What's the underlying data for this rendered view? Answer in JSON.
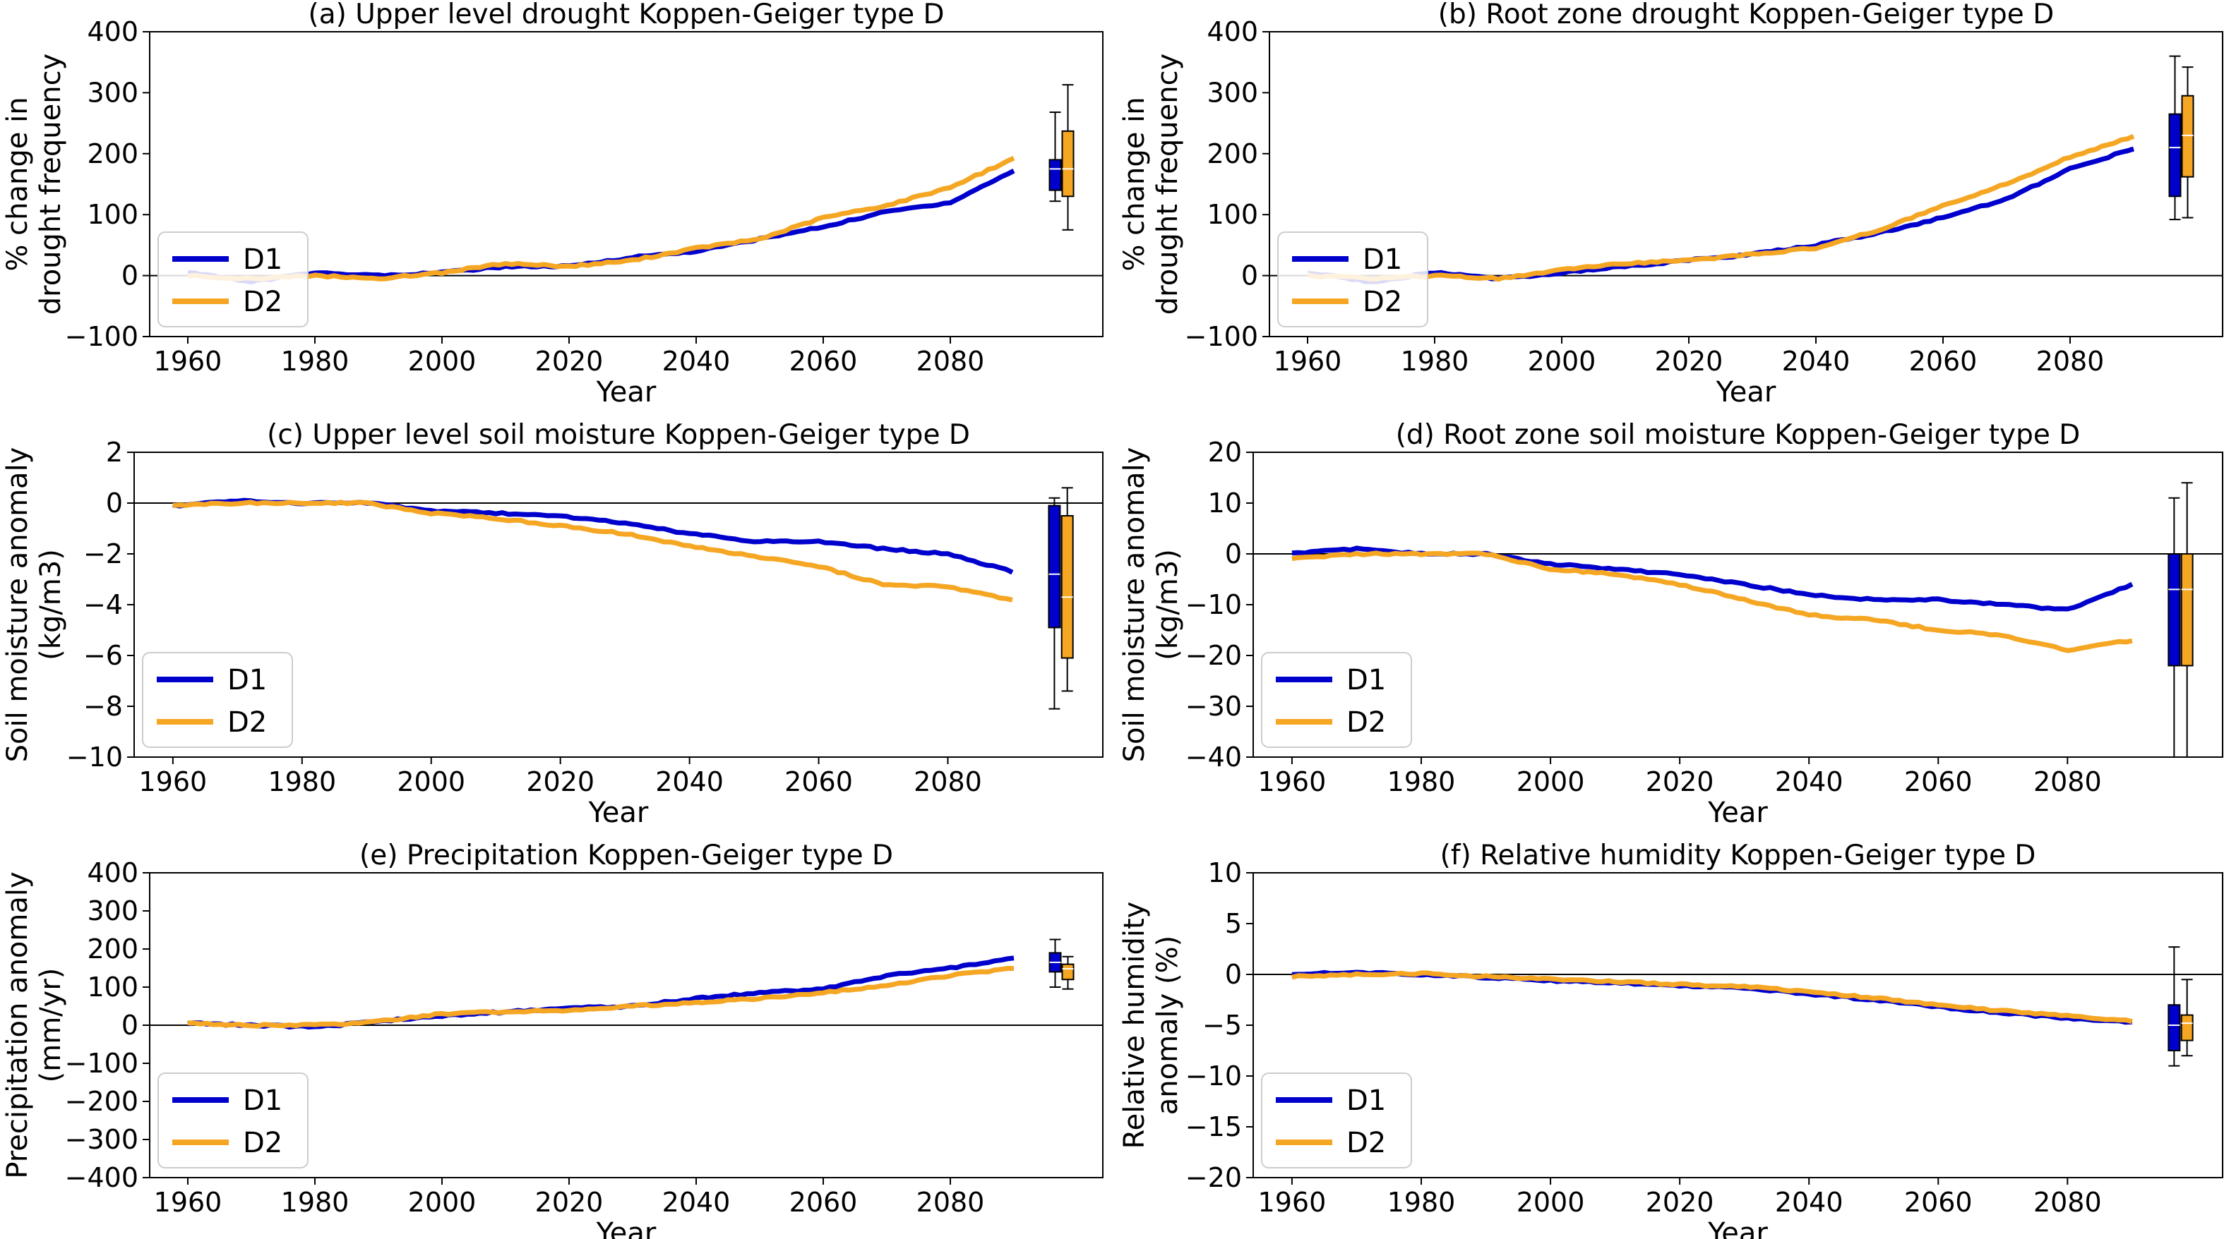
{
  "colors": {
    "D1": "#0000cd",
    "D2": "#f5a623"
  },
  "chart_data": [
    {
      "type": "line",
      "title": "(a) Upper level drought Koppen-Geiger type D",
      "xlabel": "Year",
      "ylabel": [
        "% change in",
        "drought frequency"
      ],
      "xlim": [
        1954,
        2104
      ],
      "ylim": [
        -100,
        400
      ],
      "xticks": [
        1960,
        1980,
        2000,
        2020,
        2040,
        2060,
        2080
      ],
      "yticks": [
        -100,
        0,
        100,
        200,
        300,
        400
      ],
      "zero_line": true,
      "legend": {
        "position": "lower-left",
        "entries": [
          "D1",
          "D2"
        ]
      },
      "series": [
        {
          "name": "D1",
          "x": [
            1960,
            1970,
            1980,
            1990,
            2000,
            2010,
            2020,
            2030,
            2040,
            2050,
            2060,
            2070,
            2080,
            2090
          ],
          "values": [
            5,
            -10,
            5,
            0,
            5,
            15,
            15,
            30,
            40,
            60,
            80,
            105,
            120,
            172
          ]
        },
        {
          "name": "D2",
          "x": [
            1960,
            1970,
            1980,
            1990,
            2000,
            2010,
            2020,
            2030,
            2040,
            2050,
            2060,
            2070,
            2080,
            2090
          ],
          "values": [
            0,
            -5,
            0,
            -5,
            5,
            20,
            15,
            25,
            45,
            60,
            95,
            115,
            145,
            192
          ]
        }
      ],
      "boxplots": [
        {
          "name": "D1",
          "x": 2096.5,
          "whislo": 122,
          "q1": 140,
          "median": 175,
          "q3": 190,
          "whishi": 268
        },
        {
          "name": "D2",
          "x": 2098.5,
          "whislo": 75,
          "q1": 130,
          "median": 175,
          "q3": 237,
          "whishi": 313
        }
      ]
    },
    {
      "type": "line",
      "title": "(b) Root zone drought Koppen-Geiger type D",
      "xlabel": "Year",
      "ylabel": [
        "% change in",
        "drought frequency"
      ],
      "xlim": [
        1954,
        2104
      ],
      "ylim": [
        -100,
        400
      ],
      "xticks": [
        1960,
        1980,
        2000,
        2020,
        2040,
        2060,
        2080
      ],
      "yticks": [
        -100,
        0,
        100,
        200,
        300,
        400
      ],
      "zero_line": true,
      "legend": {
        "position": "lower-left",
        "entries": [
          "D1",
          "D2"
        ]
      },
      "series": [
        {
          "name": "D1",
          "x": [
            1960,
            1970,
            1980,
            1990,
            2000,
            2010,
            2020,
            2030,
            2040,
            2050,
            2060,
            2070,
            2080,
            2090
          ],
          "values": [
            5,
            -10,
            5,
            -5,
            5,
            15,
            25,
            35,
            50,
            70,
            95,
            125,
            175,
            208
          ]
        },
        {
          "name": "D2",
          "x": [
            1960,
            1970,
            1980,
            1990,
            2000,
            2010,
            2020,
            2030,
            2040,
            2050,
            2060,
            2070,
            2080,
            2090
          ],
          "values": [
            0,
            -5,
            0,
            -5,
            10,
            20,
            25,
            35,
            45,
            75,
            115,
            150,
            195,
            228
          ]
        }
      ],
      "boxplots": [
        {
          "name": "D1",
          "x": 2096.5,
          "whislo": 92,
          "q1": 130,
          "median": 210,
          "q3": 265,
          "whishi": 360
        },
        {
          "name": "D2",
          "x": 2098.5,
          "whislo": 95,
          "q1": 162,
          "median": 230,
          "q3": 295,
          "whishi": 342
        }
      ]
    },
    {
      "type": "line",
      "title": "(c) Upper level soil moisture Koppen-Geiger type D",
      "xlabel": "Year",
      "ylabel": [
        "Soil moisture anomaly",
        "(kg/m3)"
      ],
      "xlim": [
        1954,
        2104
      ],
      "ylim": [
        -10,
        2
      ],
      "xticks": [
        1960,
        1980,
        2000,
        2020,
        2040,
        2060,
        2080
      ],
      "yticks": [
        -10,
        -8,
        -6,
        -4,
        -2,
        0,
        2
      ],
      "zero_line": true,
      "legend": {
        "position": "lower-left",
        "entries": [
          "D1",
          "D2"
        ]
      },
      "series": [
        {
          "name": "D1",
          "x": [
            1960,
            1970,
            1980,
            1990,
            2000,
            2010,
            2020,
            2030,
            2040,
            2050,
            2060,
            2070,
            2080,
            2090
          ],
          "values": [
            -0.1,
            0.1,
            0.0,
            0.0,
            -0.3,
            -0.4,
            -0.5,
            -0.8,
            -1.2,
            -1.5,
            -1.5,
            -1.8,
            -2.0,
            -2.7
          ]
        },
        {
          "name": "D2",
          "x": [
            1960,
            1970,
            1980,
            1990,
            2000,
            2010,
            2020,
            2030,
            2040,
            2050,
            2060,
            2070,
            2080,
            2090
          ],
          "values": [
            -0.1,
            0.0,
            0.0,
            0.0,
            -0.4,
            -0.6,
            -0.9,
            -1.2,
            -1.7,
            -2.1,
            -2.5,
            -3.2,
            -3.3,
            -3.8
          ]
        }
      ],
      "boxplots": [
        {
          "name": "D1",
          "x": 2096.5,
          "whislo": -8.1,
          "q1": -4.9,
          "median": -2.8,
          "q3": -0.1,
          "whishi": 0.2
        },
        {
          "name": "D2",
          "x": 2098.5,
          "whislo": -7.4,
          "q1": -6.1,
          "median": -3.7,
          "q3": -0.5,
          "whishi": 0.6
        }
      ]
    },
    {
      "type": "line",
      "title": "(d) Root zone soil moisture Koppen-Geiger type D",
      "xlabel": "Year",
      "ylabel": [
        "Soil moisture anomaly",
        "(kg/m3)"
      ],
      "xlim": [
        1954,
        2104
      ],
      "ylim": [
        -40,
        20
      ],
      "xticks": [
        1960,
        1980,
        2000,
        2020,
        2040,
        2060,
        2080
      ],
      "yticks": [
        -40,
        -30,
        -20,
        -10,
        0,
        10,
        20
      ],
      "zero_line": true,
      "legend": {
        "position": "lower-left",
        "entries": [
          "D1",
          "D2"
        ]
      },
      "series": [
        {
          "name": "D1",
          "x": [
            1960,
            1970,
            1980,
            1990,
            2000,
            2010,
            2020,
            2030,
            2040,
            2050,
            2060,
            2070,
            2080,
            2090
          ],
          "values": [
            0,
            1,
            0,
            0,
            -2,
            -3,
            -4,
            -6,
            -8,
            -9,
            -9,
            -10,
            -11,
            -6
          ]
        },
        {
          "name": "D2",
          "x": [
            1960,
            1970,
            1980,
            1990,
            2000,
            2010,
            2020,
            2030,
            2040,
            2050,
            2060,
            2070,
            2080,
            2090
          ],
          "values": [
            -1,
            0,
            0,
            0,
            -3,
            -4,
            -6,
            -9,
            -12,
            -13,
            -15,
            -16,
            -19,
            -17
          ]
        }
      ],
      "boxplots": [
        {
          "name": "D1",
          "x": 2096.5,
          "whislo": -40,
          "q1": -22,
          "median": -7,
          "q3": 0,
          "whishi": 11
        },
        {
          "name": "D2",
          "x": 2098.5,
          "whislo": -40,
          "q1": -22,
          "median": -7,
          "q3": 0,
          "whishi": 14
        }
      ]
    },
    {
      "type": "line",
      "title": "(e) Precipitation Koppen-Geiger type D",
      "xlabel": "Year",
      "ylabel": [
        "Precipitation anomaly",
        "(mm/yr)"
      ],
      "xlim": [
        1954,
        2104
      ],
      "ylim": [
        -400,
        400
      ],
      "xticks": [
        1960,
        1980,
        2000,
        2020,
        2040,
        2060,
        2080
      ],
      "yticks": [
        -400,
        -300,
        -200,
        -100,
        0,
        100,
        200,
        300,
        400
      ],
      "zero_line": true,
      "legend": {
        "position": "lower-left",
        "entries": [
          "D1",
          "D2"
        ]
      },
      "series": [
        {
          "name": "D1",
          "x": [
            1960,
            1970,
            1980,
            1990,
            2000,
            2010,
            2020,
            2030,
            2040,
            2050,
            2060,
            2070,
            2080,
            2090
          ],
          "values": [
            5,
            0,
            -5,
            10,
            25,
            35,
            45,
            50,
            70,
            85,
            95,
            130,
            150,
            175
          ]
        },
        {
          "name": "D2",
          "x": [
            1960,
            1970,
            1980,
            1990,
            2000,
            2010,
            2020,
            2030,
            2040,
            2050,
            2060,
            2070,
            2080,
            2090
          ],
          "values": [
            5,
            0,
            0,
            10,
            30,
            35,
            40,
            50,
            60,
            70,
            85,
            105,
            130,
            150
          ]
        }
      ],
      "boxplots": [
        {
          "name": "D1",
          "x": 2096.5,
          "whislo": 100,
          "q1": 140,
          "median": 165,
          "q3": 190,
          "whishi": 225
        },
        {
          "name": "D2",
          "x": 2098.5,
          "whislo": 95,
          "q1": 120,
          "median": 148,
          "q3": 160,
          "whishi": 180
        }
      ]
    },
    {
      "type": "line",
      "title": "(f) Relative humidity Koppen-Geiger type D",
      "xlabel": "Year",
      "ylabel": [
        "Relative humidity",
        "anomaly (%)"
      ],
      "xlim": [
        1954,
        2104
      ],
      "ylim": [
        -20,
        10
      ],
      "xticks": [
        1960,
        1980,
        2000,
        2020,
        2040,
        2060,
        2080
      ],
      "yticks": [
        -20,
        -15,
        -10,
        -5,
        0,
        5,
        10
      ],
      "zero_line": true,
      "legend": {
        "position": "lower-left",
        "entries": [
          "D1",
          "D2"
        ]
      },
      "series": [
        {
          "name": "D1",
          "x": [
            1960,
            1970,
            1980,
            1990,
            2000,
            2010,
            2020,
            2030,
            2040,
            2050,
            2060,
            2070,
            2080,
            2090
          ],
          "values": [
            0,
            0.2,
            0,
            -0.3,
            -0.6,
            -0.8,
            -1.1,
            -1.3,
            -1.9,
            -2.5,
            -3.2,
            -3.8,
            -4.3,
            -4.7
          ]
        },
        {
          "name": "D2",
          "x": [
            1960,
            1970,
            1980,
            1990,
            2000,
            2010,
            2020,
            2030,
            2040,
            2050,
            2060,
            2070,
            2080,
            2090
          ],
          "values": [
            -0.2,
            0,
            0.1,
            -0.2,
            -0.5,
            -0.7,
            -1.0,
            -1.2,
            -1.7,
            -2.3,
            -3.0,
            -3.6,
            -4.1,
            -4.6
          ]
        }
      ],
      "boxplots": [
        {
          "name": "D1",
          "x": 2096.5,
          "whislo": -9,
          "q1": -7.5,
          "median": -5,
          "q3": -3,
          "whishi": 2.7
        },
        {
          "name": "D2",
          "x": 2098.5,
          "whislo": -8,
          "q1": -6.5,
          "median": -4.8,
          "q3": -4,
          "whishi": -0.5
        }
      ]
    }
  ]
}
